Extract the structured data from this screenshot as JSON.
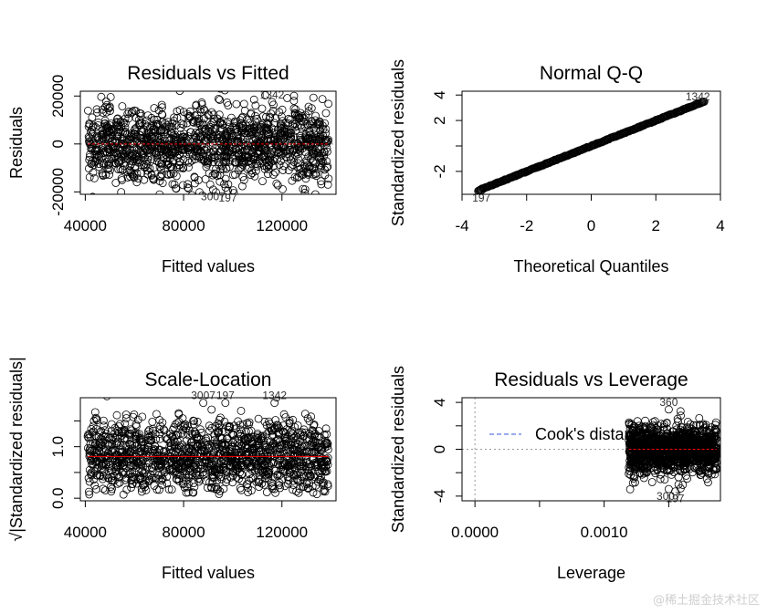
{
  "chart_data": [
    {
      "type": "scatter",
      "title": "Residuals vs Fitted",
      "xlabel": "Fitted values",
      "ylabel": "Residuals",
      "xlim": [
        38000,
        142000
      ],
      "ylim": [
        -21000,
        22000
      ],
      "xticks": [
        40000,
        80000,
        120000
      ],
      "xtick_labels": [
        "40000",
        "80000",
        "120000"
      ],
      "yticks": [
        -20000,
        0,
        20000
      ],
      "ytick_labels": [
        "-20000",
        "0",
        "20000"
      ],
      "point_cloud": {
        "x_range": [
          41000,
          139000
        ],
        "center": 0,
        "spread": 8000,
        "n": 1400
      },
      "smooth_line": {
        "color": "#ff0000",
        "style": "dashed",
        "values": [
          0,
          0
        ]
      },
      "reference_line": {
        "y": 0,
        "style": "dotted"
      },
      "flagged_points": [
        {
          "label": "1342",
          "x": 116000,
          "y": 17500
        },
        {
          "label": "3007",
          "x": 92000,
          "y": -19000
        },
        {
          "label": "197",
          "x": 98000,
          "y": -19500
        }
      ]
    },
    {
      "type": "scatter",
      "title": "Normal Q-Q",
      "xlabel": "Theoretical Quantiles",
      "ylabel": "Standardized residuals",
      "xlim": [
        -4,
        4
      ],
      "ylim": [
        -3.8,
        4.3
      ],
      "xticks": [
        -4,
        -2,
        0,
        2,
        4
      ],
      "xtick_labels": [
        "-4",
        "-2",
        "0",
        "2",
        "4"
      ],
      "yticks": [
        -2,
        0,
        2,
        4
      ],
      "ytick_labels": [
        "-2",
        "",
        "2",
        "4"
      ],
      "qq_line": {
        "x": [
          -3.6,
          3.6
        ],
        "y": [
          -3.6,
          3.6
        ]
      },
      "flagged_points": [
        {
          "label": "1342",
          "x": 3.3,
          "y": 3.3
        },
        {
          "label": "197",
          "x": -3.4,
          "y": -3.5
        }
      ]
    },
    {
      "type": "scatter",
      "title": "Scale-Location",
      "xlabel": "Fitted values",
      "ylabel": "√|Standardized residuals|",
      "xlim": [
        38000,
        142000
      ],
      "ylim": [
        -0.05,
        1.95
      ],
      "xticks": [
        40000,
        80000,
        120000
      ],
      "xtick_labels": [
        "40000",
        "80000",
        "120000"
      ],
      "yticks": [
        0.0,
        0.5,
        1.0,
        1.5
      ],
      "ytick_labels": [
        "0.0",
        "",
        "1.0",
        ""
      ],
      "point_cloud": {
        "x_range": [
          41000,
          139000
        ],
        "center": 0.8,
        "spread": 0.35,
        "n": 1400
      },
      "smooth_line": {
        "color": "#ff0000",
        "style": "solid",
        "values": [
          0.81,
          0.81
        ]
      },
      "flagged_points": [
        {
          "label": "3007",
          "x": 88000,
          "y": 1.85
        },
        {
          "label": "197",
          "x": 97000,
          "y": 1.85
        },
        {
          "label": "1342",
          "x": 117000,
          "y": 1.85
        }
      ]
    },
    {
      "type": "scatter",
      "title": "Residuals vs Leverage",
      "xlabel": "Leverage",
      "ylabel": "Standardized residuals",
      "xlim": [
        -0.0001,
        0.0019
      ],
      "ylim": [
        -4.4,
        4.4
      ],
      "xticks": [
        0.0,
        0.0005,
        0.001,
        0.0015
      ],
      "xtick_labels": [
        "0.0000",
        "",
        "0.0010",
        ""
      ],
      "yticks": [
        -4,
        -2,
        0,
        2,
        4
      ],
      "ytick_labels": [
        "-4",
        "",
        "0",
        "",
        "4"
      ],
      "point_cloud": {
        "x_range": [
          0.00119,
          0.00187
        ],
        "center": 0,
        "spread": 1.0,
        "n": 1400
      },
      "smooth_line": {
        "color": "#ff0000",
        "style": "dashed",
        "values": [
          0,
          0
        ]
      },
      "reference_line": {
        "y": 0,
        "style": "dotted"
      },
      "legend": {
        "label": "Cook's distance",
        "position": "top-left",
        "line_style": "dashed",
        "color": "#3355dd"
      },
      "flagged_points": [
        {
          "label": "360",
          "x": 0.0015,
          "y": 3.4
        },
        {
          "label": "3007",
          "x": 0.0015,
          "y": -3.4
        },
        {
          "label": "197",
          "x": 0.00155,
          "y": -3.6
        }
      ]
    }
  ],
  "watermark": "@稀土掘金技术社区"
}
